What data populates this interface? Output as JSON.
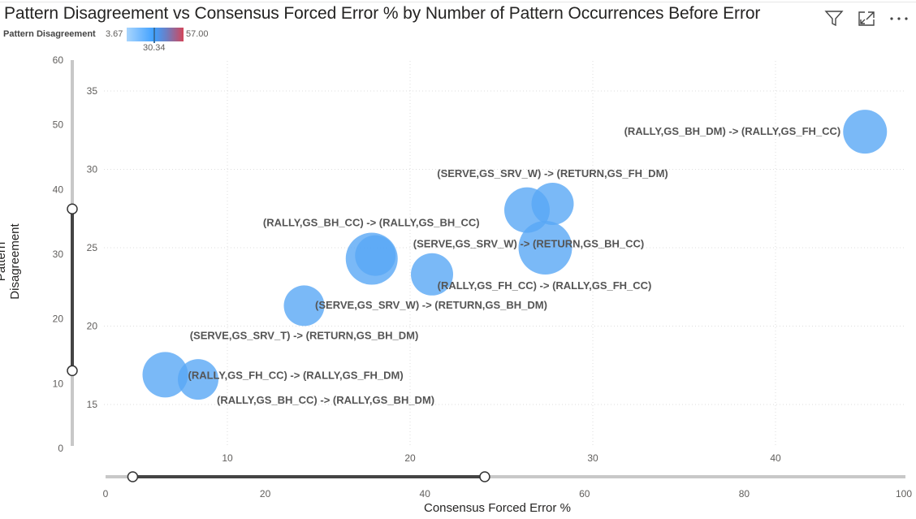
{
  "title": "Pattern Disagreement vs Consensus Forced Error % by Number of Pattern Occurrences Before Error",
  "legend": {
    "title": "Pattern Disagreement",
    "min": "3.67",
    "mid": "30.34",
    "max": "57.00",
    "colors": [
      "#a9d5fd",
      "#3fa0ff",
      "#d2465a"
    ]
  },
  "header_icons": [
    "filter-icon",
    "focus-mode-icon",
    "more-options-icon"
  ],
  "chart_data": {
    "type": "scatter",
    "title": "Pattern Disagreement vs Consensus Forced Error % by Number of Pattern Occurrences Before Error",
    "xlabel": "Consensus Forced Error %",
    "ylabel": "Pattern Disagreement",
    "xlim": [
      0,
      50
    ],
    "ylim": [
      14,
      36
    ],
    "x_ticks": [
      "10",
      "20",
      "30",
      "40"
    ],
    "y_ticks": [
      "35",
      "30",
      "25",
      "20",
      "15"
    ],
    "grid": true,
    "bubble_color": "#59a8f5",
    "points": [
      {
        "x": 44.9,
        "y": 32.4,
        "size": 27,
        "label": "(RALLY,GS_BH_DM) -> (RALLY,GS_FH_CC)"
      },
      {
        "x": 26.4,
        "y": 27.4,
        "size": 28,
        "label": "(SERVE,GS_SRV_W) -> (RETURN,GS_BH_CC)"
      },
      {
        "x": 27.8,
        "y": 27.8,
        "size": 26,
        "label": "(SERVE,GS_SRV_W) -> (RETURN,GS_FH_DM)"
      },
      {
        "x": 27.4,
        "y": 25.0,
        "size": 33,
        "label": "(RALLY,GS_FH_CC) -> (RALLY,GS_FH_CC)"
      },
      {
        "x": 17.9,
        "y": 24.3,
        "size": 32,
        "label": ""
      },
      {
        "x": 18.1,
        "y": 24.5,
        "size": 25,
        "label": "(RALLY,GS_BH_CC) -> (RALLY,GS_BH_CC)"
      },
      {
        "x": 21.2,
        "y": 23.3,
        "size": 26,
        "label": "(SERVE,GS_SRV_W) -> (RETURN,GS_BH_DM)"
      },
      {
        "x": 14.2,
        "y": 21.3,
        "size": 25,
        "label": "(SERVE,GS_SRV_T) -> (RETURN,GS_BH_DM)"
      },
      {
        "x": 6.6,
        "y": 16.9,
        "size": 28,
        "label": "(RALLY,GS_FH_CC) -> (RALLY,GS_FH_DM)"
      },
      {
        "x": 8.4,
        "y": 16.6,
        "size": 25,
        "label": "(RALLY,GS_BH_CC) -> (RALLY,GS_BH_DM)"
      }
    ],
    "y_slider": {
      "axis_ticks": [
        "60",
        "50",
        "40",
        "30",
        "20",
        "10",
        "0"
      ],
      "range": [
        0,
        60
      ],
      "selected": [
        12,
        37
      ]
    },
    "x_slider": {
      "axis_ticks": [
        "0",
        "20",
        "40",
        "60",
        "80",
        "100"
      ],
      "range": [
        0,
        100
      ],
      "selected": [
        3.4,
        47.5
      ]
    }
  }
}
